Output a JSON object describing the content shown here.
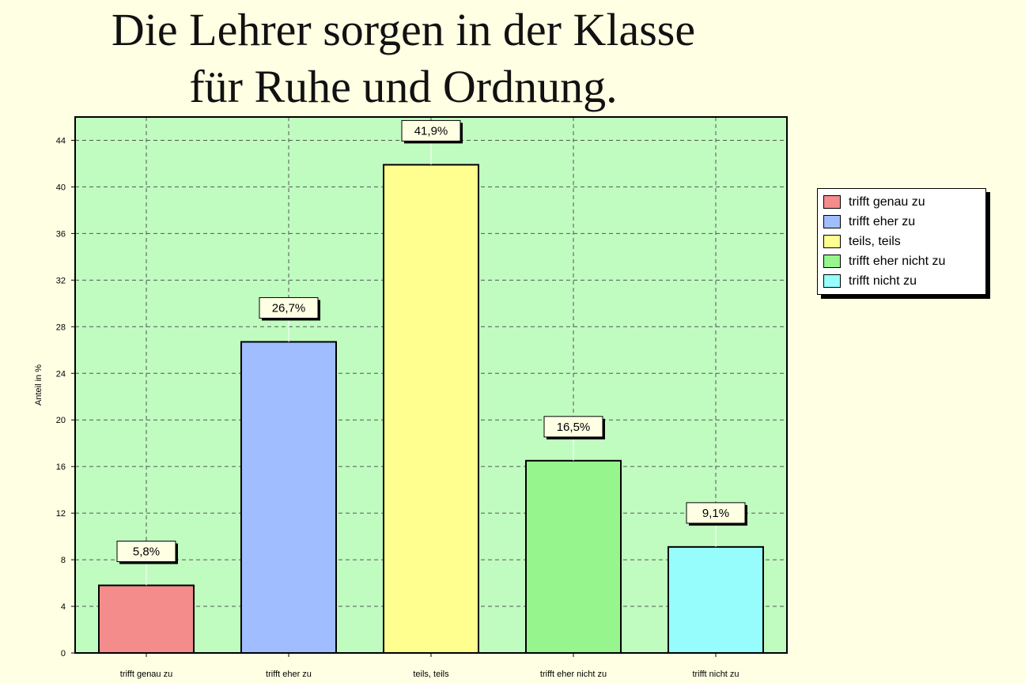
{
  "title_line1": "Die Lehrer sorgen in der Klasse",
  "title_line2": "für Ruhe und Ordnung.",
  "chart_data": {
    "type": "bar",
    "categories": [
      "trifft genau zu",
      "trifft eher zu",
      "teils, teils",
      "trifft eher nicht zu",
      "trifft nicht zu"
    ],
    "values": [
      5.8,
      26.7,
      41.9,
      16.5,
      9.1
    ],
    "data_labels": [
      "5,8%",
      "26,7%",
      "41,9%",
      "16,5%",
      "9,1%"
    ],
    "colors": [
      "#f48c8c",
      "#a0beff",
      "#ffff90",
      "#96f58c",
      "#96fcfc"
    ],
    "ylabel": "Anteil in %",
    "ylim": [
      0,
      46
    ],
    "yticks": [
      0,
      4,
      8,
      12,
      16,
      20,
      24,
      28,
      32,
      36,
      40,
      44
    ],
    "grid": true,
    "plot_background": "#c0fcc0",
    "legend_position": "right"
  },
  "legend": {
    "items": [
      {
        "label": "trifft genau zu",
        "color": "#f48c8c"
      },
      {
        "label": "trifft eher zu",
        "color": "#a0beff"
      },
      {
        "label": "teils, teils",
        "color": "#ffff90"
      },
      {
        "label": "trifft eher nicht zu",
        "color": "#96f58c"
      },
      {
        "label": "trifft nicht zu",
        "color": "#96fcfc"
      }
    ]
  }
}
